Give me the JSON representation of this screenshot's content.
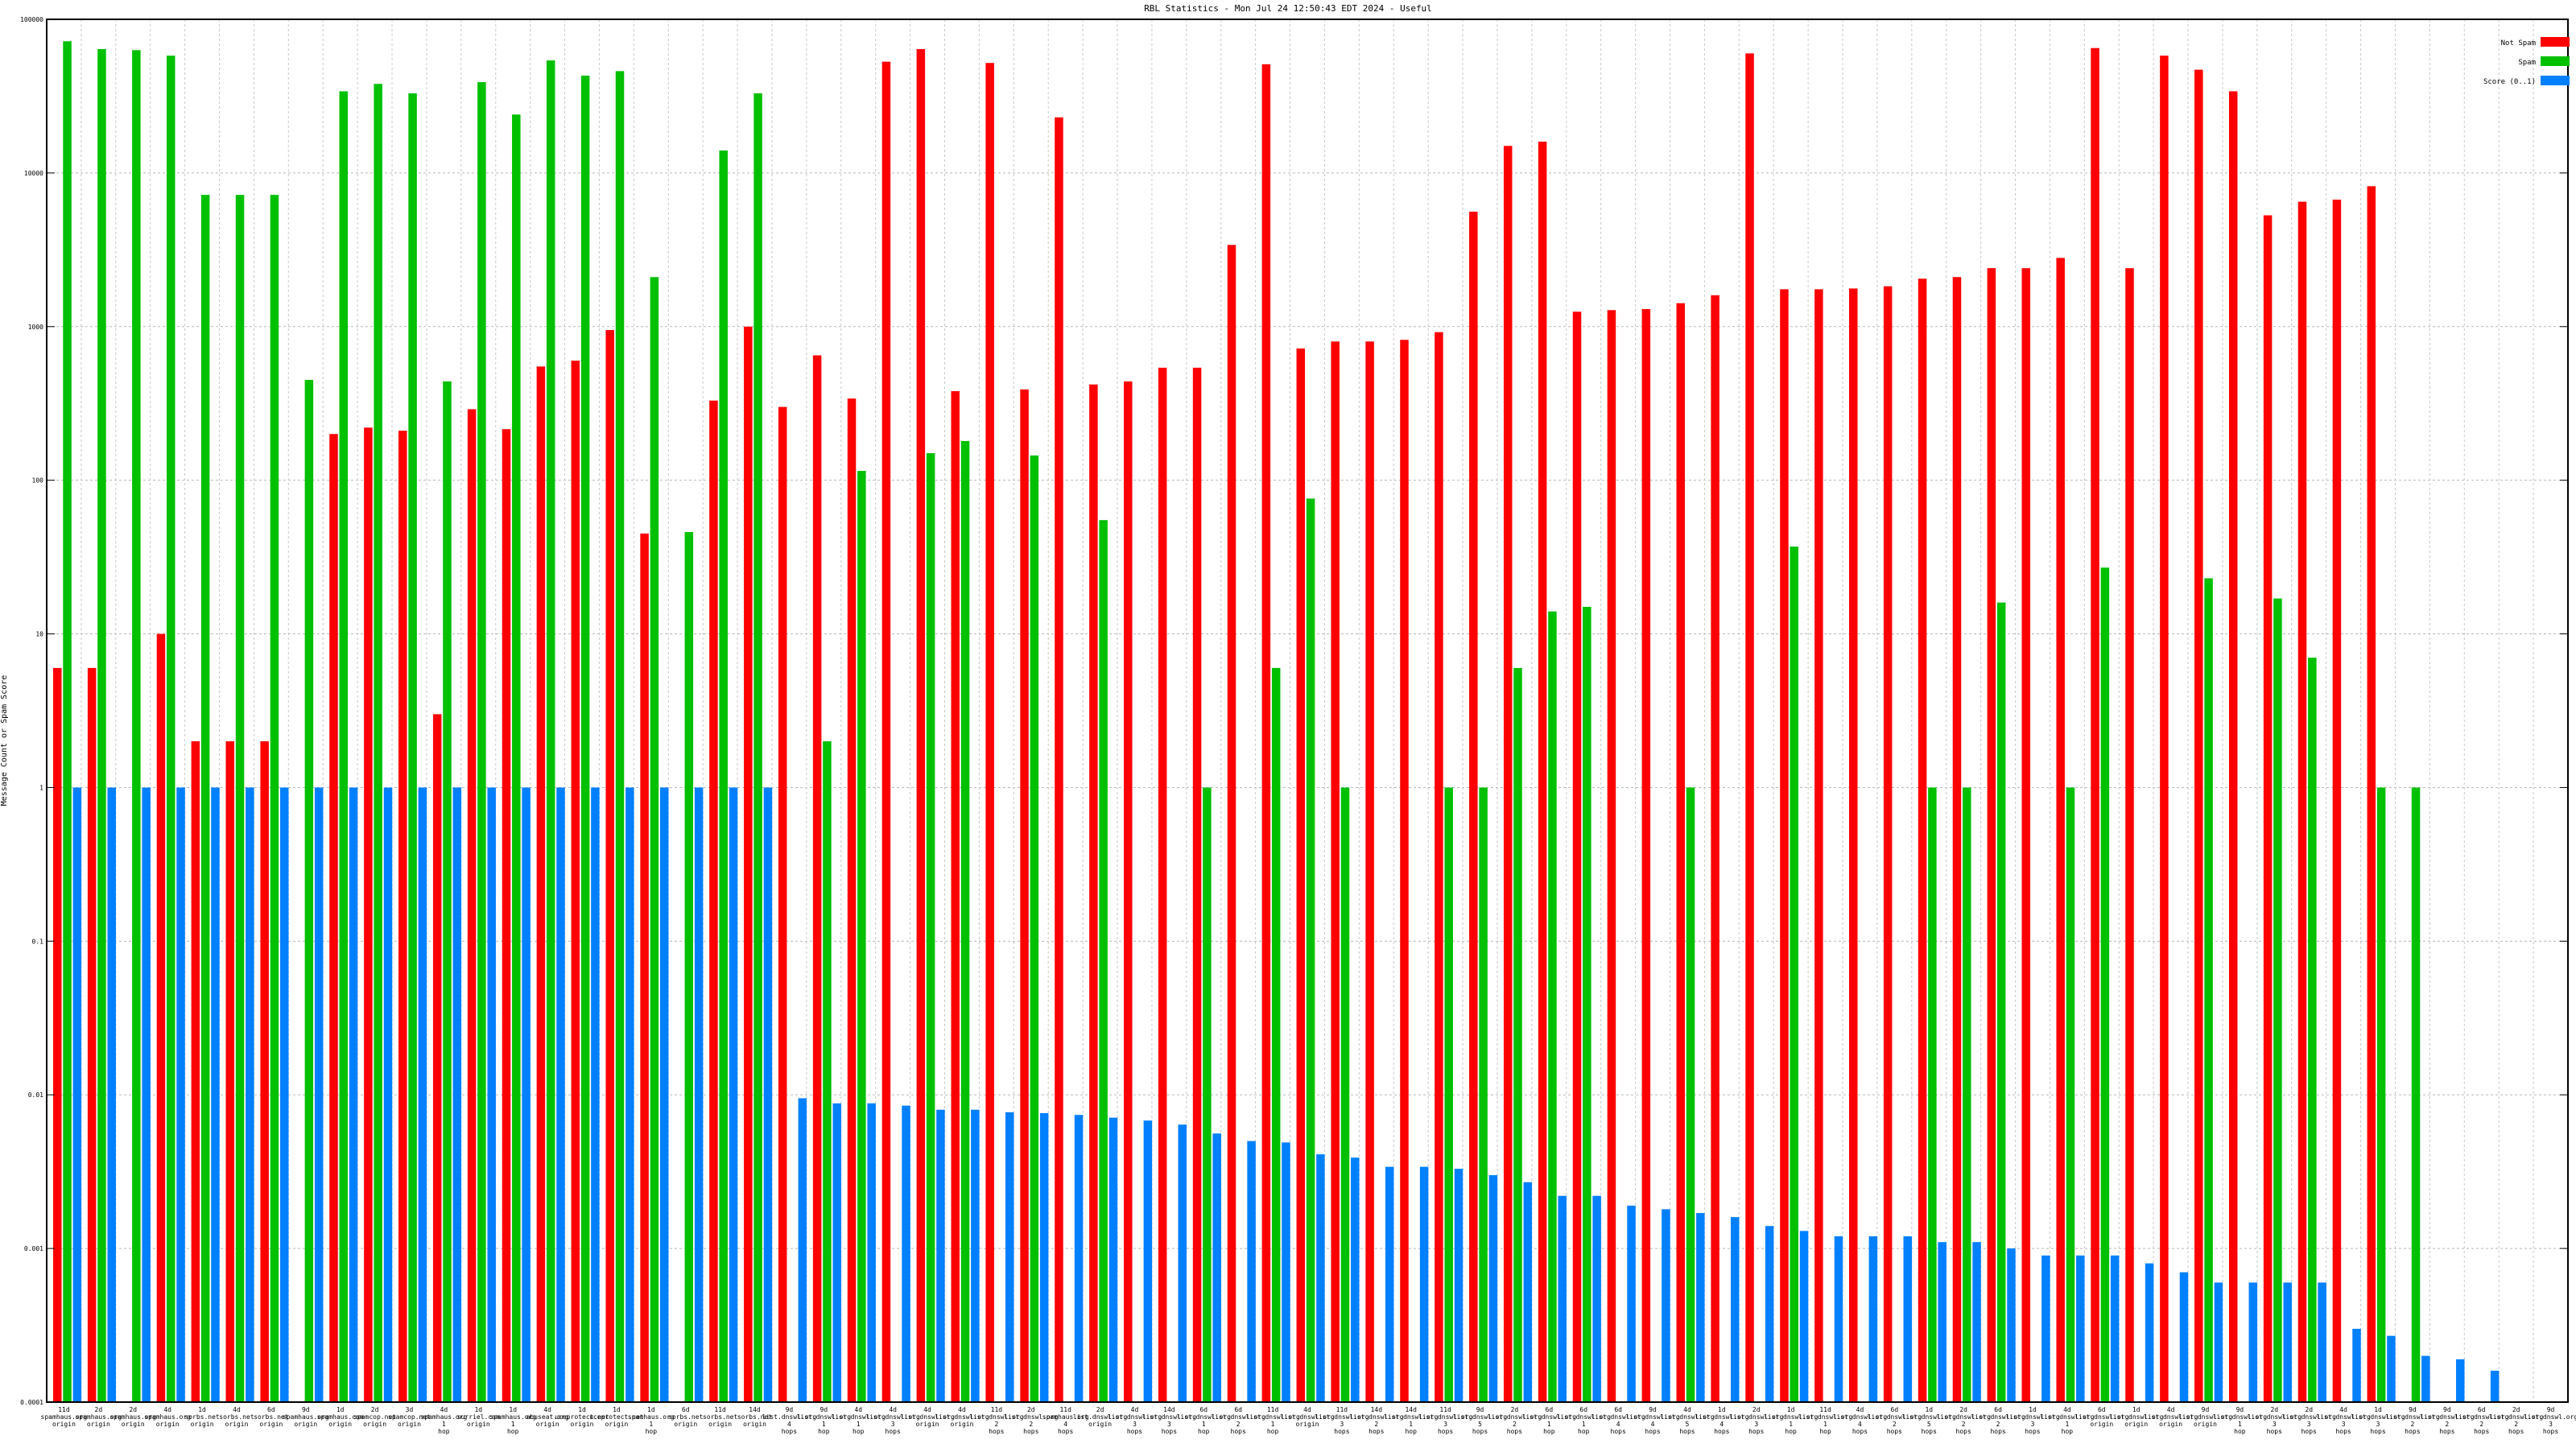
{
  "chart_data": {
    "type": "bar",
    "title": "RBL Statistics - Mon Jul 24 12:50:43 EDT 2024 - Useful",
    "ylabel": "Message Count or Spam Score",
    "xlabel": "",
    "yscale": "log",
    "ylim": [
      0.0001,
      100000
    ],
    "yticks": [
      {
        "v": 100000,
        "label": "100000"
      },
      {
        "v": 10000,
        "label": "10000"
      },
      {
        "v": 1000,
        "label": "1000"
      },
      {
        "v": 100,
        "label": "100"
      },
      {
        "v": 10,
        "label": "10"
      },
      {
        "v": 1,
        "label": "1"
      },
      {
        "v": 0.1,
        "label": "0.1"
      },
      {
        "v": 0.01,
        "label": "0.01"
      },
      {
        "v": 0.001,
        "label": "0.001"
      },
      {
        "v": 0.0001,
        "label": "0.0001"
      }
    ],
    "grid": true,
    "legend_position": "top-right",
    "categories": [
      "11d spamhaus.org origin",
      "2d spamhaus.org origin",
      "2d spamhaus.org origin",
      "4d spamhaus.org origin",
      "1d sorbs.net origin",
      "4d sorbs.net origin",
      "6d sorbs.net origin",
      "9d spamhaus.org origin",
      "1d spamhaus.com origin",
      "2d spamcop.net origin",
      "3d spamcop.net origin",
      "4d spamhaus.org 1 hop",
      "1d surriel.com origin",
      "1d spamhaus.org 1 hop",
      "4d abuseat.org origin",
      "1d uceprotect.net origin",
      "1d uceprotect.net origin",
      "1d spamhaus.org 1 hop",
      "6d sorbs.net origin",
      "11d sorbs.net origin",
      "14d sorbs.net origin",
      "9d list.dnswl.org 4 hops",
      "9d list.dnswl.org 1 hop",
      "4d list.dnswl.org 1 hop",
      "4d list.dnswl.org 3 hops",
      "4d list.dnswl.org origin",
      "4d list.dnswl.org origin",
      "11d list.dnswl.org 2 hops",
      "2d list.dnswl.org 2 hops",
      "11d spamhaus.org 4 hops",
      "2d list.dnswl.org origin",
      "4d list.dnswl.org 3 hops",
      "14d list.dnswl.org 3 hops",
      "6d list.dnswl.org 1 hop",
      "6d list.dnswl.org 2 hops",
      "11d list.dnswl.org 1 hop",
      "4d list.dnswl.org origin",
      "11d list.dnswl.org 3 hops",
      "14d list.dnswl.org 2 hops",
      "14d list.dnswl.org 1 hop",
      "11d list.dnswl.org 3 hops",
      "9d list.dnswl.org 5 hops",
      "2d list.dnswl.org 2 hops",
      "6d list.dnswl.org 1 hop",
      "6d list.dnswl.org 1 hop",
      "6d list.dnswl.org 4 hops",
      "9d list.dnswl.org 4 hops",
      "4d list.dnswl.org 5 hops",
      "1d list.dnswl.org 4 hops",
      "2d list.dnswl.org 3 hops",
      "1d list.dnswl.org 1 hop",
      "11d list.dnswl.org 1 hop",
      "4d list.dnswl.org 4 hops",
      "6d list.dnswl.org 2 hops",
      "1d list.dnswl.org 5 hops",
      "2d list.dnswl.org 2 hops",
      "6d list.dnswl.org 2 hops",
      "1d list.dnswl.org 3 hops",
      "4d list.dnswl.org 1 hop",
      "6d list.dnswl.org origin",
      "1d list.dnswl.org origin",
      "4d list.dnswl.org origin",
      "9d list.dnswl.org origin",
      "9d list.dnswl.org 1 hop",
      "2d list.dnswl.org 3 hops",
      "2d list.dnswl.org 3 hops",
      "4d list.dnswl.org 3 hops",
      "1d list.dnswl.org 3 hops",
      "9d list.dnswl.org 2 hops",
      "9d list.dnswl.org 2 hops",
      "6d list.dnswl.org 2 hops",
      "2d list.dnswl.org 2 hops",
      "9d list.dnswl.org 3 hops"
    ],
    "series": [
      {
        "name": "Not Spam",
        "color": "#ff0000",
        "values": [
          6,
          6,
          null,
          10,
          2,
          2,
          2,
          null,
          200,
          220,
          210,
          3,
          290,
          215,
          550,
          600,
          950,
          45,
          null,
          330,
          1000,
          300,
          650,
          340,
          53000,
          64000,
          380,
          52000,
          390,
          23000,
          420,
          440,
          540,
          540,
          3400,
          51000,
          720,
          800,
          800,
          820,
          920,
          5600,
          15000,
          16000,
          1250,
          1280,
          1300,
          1420,
          1600,
          60000,
          1750,
          1750,
          1770,
          1830,
          2050,
          2100,
          2400,
          2400,
          2800,
          65000,
          2400,
          58000,
          47000,
          34000,
          5300,
          6500,
          6700,
          8200,
          null,
          null,
          null,
          null,
          null
        ]
      },
      {
        "name": "Spam",
        "color": "#00c000",
        "values": [
          72000,
          64000,
          63000,
          58000,
          7200,
          7200,
          7200,
          450,
          34000,
          38000,
          33000,
          440,
          39000,
          24000,
          54000,
          43000,
          46000,
          2100,
          46,
          14000,
          33000,
          null,
          2,
          115,
          null,
          150,
          180,
          null,
          145,
          null,
          55,
          null,
          null,
          1,
          null,
          6,
          76,
          1,
          null,
          null,
          1,
          1,
          6,
          14,
          15,
          null,
          null,
          1,
          null,
          null,
          37,
          null,
          null,
          null,
          1,
          1,
          16,
          null,
          1,
          27,
          null,
          null,
          23,
          null,
          17,
          7,
          null,
          1,
          1,
          null,
          null,
          null,
          null
        ]
      },
      {
        "name": "Score (0..1)",
        "color": "#0080ff",
        "values": [
          1,
          1,
          1,
          1,
          1,
          1,
          1,
          1,
          1,
          1,
          1,
          1,
          1,
          1,
          1,
          1,
          1,
          1,
          1,
          1,
          1,
          0.0095,
          0.0088,
          0.0088,
          0.0085,
          0.008,
          0.008,
          0.0077,
          0.0076,
          0.0074,
          0.0071,
          0.0068,
          0.0064,
          0.0056,
          0.005,
          0.0049,
          0.0041,
          0.0039,
          0.0034,
          0.0034,
          0.0033,
          0.003,
          0.0027,
          0.0022,
          0.0022,
          0.0019,
          0.0018,
          0.0017,
          0.0016,
          0.0014,
          0.0013,
          0.0012,
          0.0012,
          0.0012,
          0.0011,
          0.0011,
          0.001,
          0.0009,
          0.0009,
          0.0009,
          0.0008,
          0.0007,
          0.0006,
          0.0006,
          0.0006,
          0.0006,
          0.0003,
          0.00027,
          0.0002,
          0.00019,
          0.00016,
          null,
          null
        ]
      }
    ]
  }
}
